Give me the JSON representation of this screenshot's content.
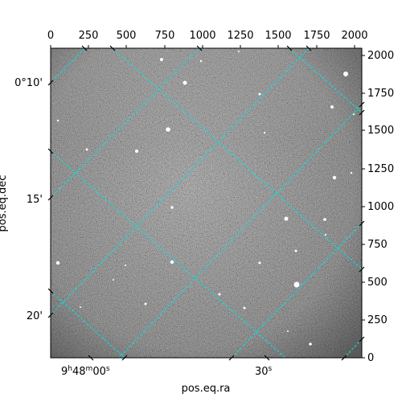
{
  "figure": {
    "xlabel": "pos.eq.ra",
    "ylabel": "pos.eq.dec",
    "top_ticks": [
      "0",
      "250",
      "500",
      "750",
      "1000",
      "1250",
      "1500",
      "1750",
      "2000"
    ],
    "right_ticks": [
      "0",
      "250",
      "500",
      "750",
      "1000",
      "1250",
      "1500",
      "1750",
      "2000"
    ],
    "left_ticks": [
      "0°10'",
      "15'",
      "20'"
    ],
    "bottom_ticks": [
      {
        "base": "9",
        "h": "h",
        "m_val": "48",
        "m": "m",
        "s_val": "00",
        "s": "s"
      },
      {
        "plain": "30",
        "s": "s"
      }
    ],
    "grid_color": "#00e5e5",
    "image_tone": "grayscale star field"
  }
}
